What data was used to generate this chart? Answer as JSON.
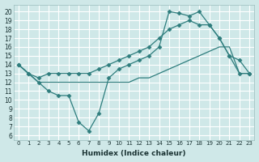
{
  "xlabel": "Humidex (Indice chaleur)",
  "xlim": [
    -0.5,
    23.5
  ],
  "ylim": [
    5.5,
    20.8
  ],
  "yticks": [
    6,
    7,
    8,
    9,
    10,
    11,
    12,
    13,
    14,
    15,
    16,
    17,
    18,
    19,
    20
  ],
  "xticks": [
    0,
    1,
    2,
    3,
    4,
    5,
    6,
    7,
    8,
    9,
    10,
    11,
    12,
    13,
    14,
    15,
    16,
    17,
    18,
    19,
    20,
    21,
    22,
    23
  ],
  "bg_color": "#cfe8e8",
  "grid_color": "#ffffff",
  "line_color": "#2e7d7d",
  "lines": [
    {
      "x": [
        0,
        1,
        2,
        3,
        4,
        5,
        6,
        7,
        8,
        9,
        10,
        11,
        12,
        13,
        14,
        15,
        16,
        17,
        18,
        19,
        20,
        21,
        22,
        23
      ],
      "y": [
        14,
        13,
        12,
        11,
        10.5,
        10.5,
        7.5,
        6.5,
        8.5,
        12.5,
        13.5,
        14,
        14.5,
        15,
        16,
        20,
        19.8,
        19.5,
        20,
        18.5,
        17,
        15,
        13,
        13
      ],
      "marker": "D",
      "markersize": 2.5
    },
    {
      "x": [
        0,
        1,
        2,
        3,
        4,
        5,
        6,
        7,
        8,
        9,
        10,
        11,
        12,
        13,
        14,
        15,
        16,
        17,
        18,
        19,
        20,
        21,
        22,
        23
      ],
      "y": [
        14,
        13,
        12.5,
        13,
        13,
        13,
        13,
        13,
        13.5,
        14,
        14.5,
        15,
        15.5,
        16,
        17,
        18,
        18.5,
        19,
        18.5,
        18.5,
        17,
        15,
        14.5,
        13
      ],
      "marker": "D",
      "markersize": 2.5
    },
    {
      "x": [
        0,
        1,
        2,
        3,
        4,
        5,
        6,
        7,
        8,
        9,
        10,
        11,
        12,
        13,
        14,
        15,
        16,
        17,
        18,
        19,
        20,
        21,
        22,
        23
      ],
      "y": [
        14,
        13,
        12,
        12,
        12,
        12,
        12,
        12,
        12,
        12,
        12,
        12,
        12.5,
        12.5,
        13,
        13.5,
        14,
        14.5,
        15,
        15.5,
        16,
        16,
        13,
        13
      ],
      "marker": null,
      "markersize": 0
    }
  ]
}
